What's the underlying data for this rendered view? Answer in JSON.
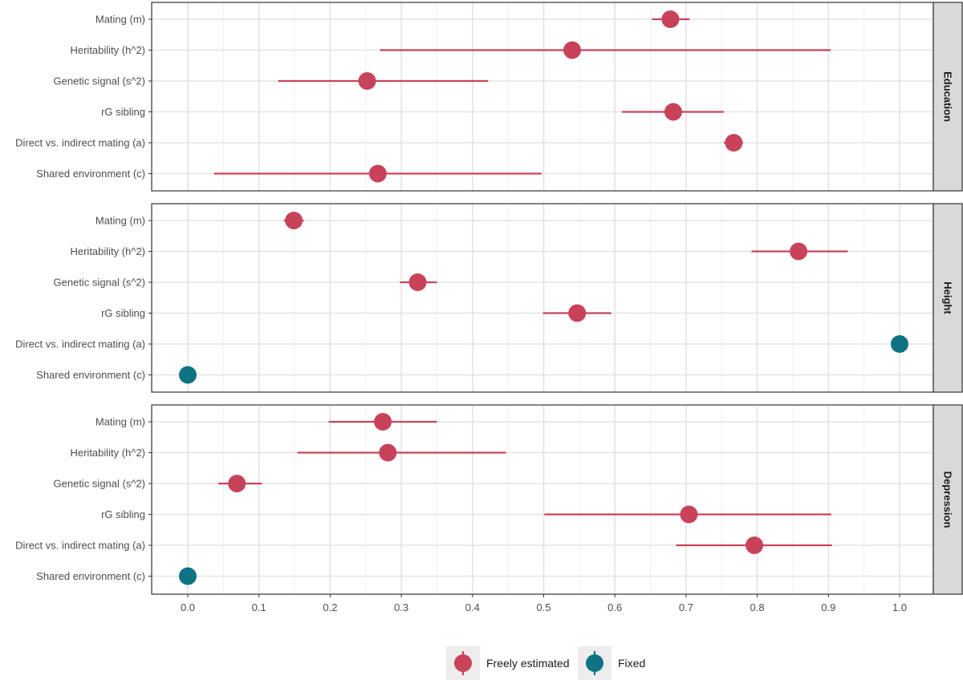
{
  "chart_data": {
    "type": "forest",
    "xlim": [
      -0.05,
      1.05
    ],
    "x_ticks": [
      "0.0",
      "0.1",
      "0.2",
      "0.3",
      "0.4",
      "0.5",
      "0.6",
      "0.7",
      "0.8",
      "0.9",
      "1.0"
    ],
    "x_tick_values": [
      0.0,
      0.1,
      0.2,
      0.3,
      0.4,
      0.5,
      0.6,
      0.7,
      0.8,
      0.9,
      1.0
    ],
    "parameters": [
      "Mating (m)",
      "Heritability (h^2)",
      "Genetic signal (s^2)",
      "rG sibling",
      "Direct vs. indirect mating (a)",
      "Shared environment (c)"
    ],
    "legend": [
      {
        "name": "Freely estimated",
        "color": "#c8435a"
      },
      {
        "name": "Fixed",
        "color": "#0e7484"
      }
    ],
    "panels": [
      {
        "label": "Education",
        "estimates": [
          {
            "parameter": "Mating (m)",
            "estimate": 0.678,
            "lower": 0.652,
            "upper": 0.705,
            "type": "Freely estimated"
          },
          {
            "parameter": "Heritability (h^2)",
            "estimate": 0.54,
            "lower": 0.27,
            "upper": 0.903,
            "type": "Freely estimated"
          },
          {
            "parameter": "Genetic signal (s^2)",
            "estimate": 0.252,
            "lower": 0.127,
            "upper": 0.422,
            "type": "Freely estimated"
          },
          {
            "parameter": "rG sibling",
            "estimate": 0.682,
            "lower": 0.61,
            "upper": 0.753,
            "type": "Freely estimated"
          },
          {
            "parameter": "Direct vs. indirect mating (a)",
            "estimate": 0.767,
            "lower": 0.753,
            "upper": 0.78,
            "type": "Freely estimated"
          },
          {
            "parameter": "Shared environment (c)",
            "estimate": 0.267,
            "lower": 0.037,
            "upper": 0.497,
            "type": "Freely estimated"
          }
        ]
      },
      {
        "label": "Height",
        "estimates": [
          {
            "parameter": "Mating (m)",
            "estimate": 0.149,
            "lower": 0.135,
            "upper": 0.163,
            "type": "Freely estimated"
          },
          {
            "parameter": "Heritability (h^2)",
            "estimate": 0.858,
            "lower": 0.792,
            "upper": 0.927,
            "type": "Freely estimated"
          },
          {
            "parameter": "Genetic signal (s^2)",
            "estimate": 0.323,
            "lower": 0.298,
            "upper": 0.35,
            "type": "Freely estimated"
          },
          {
            "parameter": "rG sibling",
            "estimate": 0.547,
            "lower": 0.499,
            "upper": 0.595,
            "type": "Freely estimated"
          },
          {
            "parameter": "Direct vs. indirect mating (a)",
            "estimate": 1.0,
            "lower": 1.0,
            "upper": 1.0,
            "type": "Fixed"
          },
          {
            "parameter": "Shared environment (c)",
            "estimate": 0.0,
            "lower": 0.0,
            "upper": 0.0,
            "type": "Fixed"
          }
        ]
      },
      {
        "label": "Depression",
        "estimates": [
          {
            "parameter": "Mating (m)",
            "estimate": 0.274,
            "lower": 0.198,
            "upper": 0.35,
            "type": "Freely estimated"
          },
          {
            "parameter": "Heritability (h^2)",
            "estimate": 0.281,
            "lower": 0.154,
            "upper": 0.447,
            "type": "Freely estimated"
          },
          {
            "parameter": "Genetic signal (s^2)",
            "estimate": 0.069,
            "lower": 0.043,
            "upper": 0.104,
            "type": "Freely estimated"
          },
          {
            "parameter": "rG sibling",
            "estimate": 0.704,
            "lower": 0.501,
            "upper": 0.904,
            "type": "Freely estimated"
          },
          {
            "parameter": "Direct vs. indirect mating (a)",
            "estimate": 0.796,
            "lower": 0.686,
            "upper": 0.905,
            "type": "Freely estimated"
          },
          {
            "parameter": "Shared environment (c)",
            "estimate": 0.0,
            "lower": 0.0,
            "upper": 0.0,
            "type": "Fixed"
          }
        ]
      }
    ]
  }
}
